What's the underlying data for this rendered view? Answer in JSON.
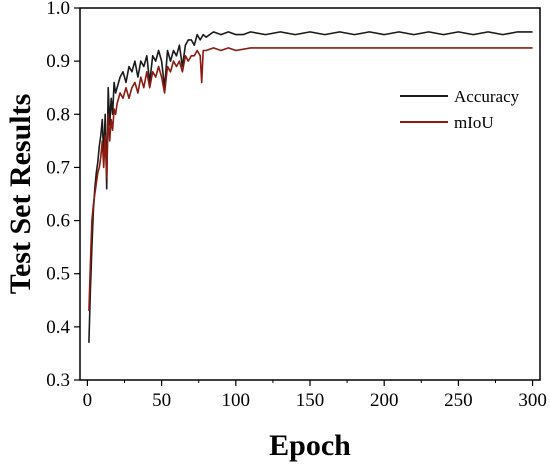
{
  "chart_data": {
    "type": "line",
    "title": "",
    "xlabel": "Epoch",
    "ylabel": "Test Set Results",
    "xlim": [
      -5,
      305
    ],
    "ylim": [
      0.3,
      1.0
    ],
    "xticks": [
      "0",
      "50",
      "100",
      "150",
      "200",
      "250",
      "300"
    ],
    "yticks": [
      "0.3",
      "0.4",
      "0.5",
      "0.6",
      "0.7",
      "0.8",
      "0.9",
      "1.0"
    ],
    "grid": false,
    "legend_position": "top-right",
    "series": [
      {
        "name": "Accuracy",
        "color": "#1a1a1a",
        "points": [
          [
            1,
            0.37
          ],
          [
            2,
            0.47
          ],
          [
            3,
            0.55
          ],
          [
            4,
            0.62
          ],
          [
            5,
            0.66
          ],
          [
            6,
            0.69
          ],
          [
            7,
            0.71
          ],
          [
            8,
            0.74
          ],
          [
            9,
            0.76
          ],
          [
            10,
            0.79
          ],
          [
            11,
            0.72
          ],
          [
            12,
            0.8
          ],
          [
            13,
            0.66
          ],
          [
            14,
            0.85
          ],
          [
            15,
            0.78
          ],
          [
            16,
            0.83
          ],
          [
            17,
            0.8
          ],
          [
            18,
            0.86
          ],
          [
            19,
            0.84
          ],
          [
            20,
            0.85
          ],
          [
            22,
            0.87
          ],
          [
            24,
            0.88
          ],
          [
            26,
            0.86
          ],
          [
            28,
            0.89
          ],
          [
            30,
            0.88
          ],
          [
            32,
            0.9
          ],
          [
            34,
            0.87
          ],
          [
            36,
            0.9
          ],
          [
            38,
            0.89
          ],
          [
            40,
            0.91
          ],
          [
            42,
            0.86
          ],
          [
            44,
            0.91
          ],
          [
            46,
            0.9
          ],
          [
            48,
            0.92
          ],
          [
            50,
            0.9
          ],
          [
            52,
            0.85
          ],
          [
            54,
            0.92
          ],
          [
            56,
            0.9
          ],
          [
            58,
            0.92
          ],
          [
            60,
            0.91
          ],
          [
            62,
            0.93
          ],
          [
            64,
            0.89
          ],
          [
            66,
            0.93
          ],
          [
            68,
            0.94
          ],
          [
            70,
            0.94
          ],
          [
            72,
            0.93
          ],
          [
            74,
            0.95
          ],
          [
            76,
            0.94
          ],
          [
            78,
            0.95
          ],
          [
            80,
            0.945
          ],
          [
            85,
            0.955
          ],
          [
            90,
            0.95
          ],
          [
            95,
            0.955
          ],
          [
            100,
            0.95
          ],
          [
            105,
            0.95
          ],
          [
            110,
            0.955
          ],
          [
            120,
            0.95
          ],
          [
            130,
            0.955
          ],
          [
            140,
            0.95
          ],
          [
            150,
            0.955
          ],
          [
            160,
            0.95
          ],
          [
            170,
            0.955
          ],
          [
            180,
            0.95
          ],
          [
            190,
            0.955
          ],
          [
            200,
            0.95
          ],
          [
            210,
            0.955
          ],
          [
            220,
            0.95
          ],
          [
            230,
            0.955
          ],
          [
            240,
            0.95
          ],
          [
            250,
            0.955
          ],
          [
            260,
            0.95
          ],
          [
            270,
            0.955
          ],
          [
            280,
            0.95
          ],
          [
            290,
            0.955
          ],
          [
            300,
            0.955
          ]
        ]
      },
      {
        "name": "mIoU",
        "color": "#8b1a10",
        "points": [
          [
            1,
            0.43
          ],
          [
            2,
            0.52
          ],
          [
            3,
            0.6
          ],
          [
            4,
            0.63
          ],
          [
            5,
            0.65
          ],
          [
            6,
            0.67
          ],
          [
            7,
            0.69
          ],
          [
            8,
            0.7
          ],
          [
            9,
            0.72
          ],
          [
            10,
            0.75
          ],
          [
            11,
            0.7
          ],
          [
            12,
            0.76
          ],
          [
            13,
            0.68
          ],
          [
            14,
            0.8
          ],
          [
            15,
            0.75
          ],
          [
            16,
            0.79
          ],
          [
            17,
            0.77
          ],
          [
            18,
            0.81
          ],
          [
            19,
            0.8
          ],
          [
            20,
            0.82
          ],
          [
            22,
            0.84
          ],
          [
            24,
            0.83
          ],
          [
            26,
            0.85
          ],
          [
            28,
            0.83
          ],
          [
            30,
            0.85
          ],
          [
            32,
            0.86
          ],
          [
            34,
            0.84
          ],
          [
            36,
            0.87
          ],
          [
            38,
            0.85
          ],
          [
            40,
            0.88
          ],
          [
            42,
            0.85
          ],
          [
            44,
            0.88
          ],
          [
            46,
            0.87
          ],
          [
            48,
            0.89
          ],
          [
            50,
            0.87
          ],
          [
            52,
            0.84
          ],
          [
            54,
            0.89
          ],
          [
            56,
            0.88
          ],
          [
            58,
            0.9
          ],
          [
            60,
            0.89
          ],
          [
            62,
            0.9
          ],
          [
            64,
            0.88
          ],
          [
            66,
            0.91
          ],
          [
            68,
            0.9
          ],
          [
            70,
            0.91
          ],
          [
            72,
            0.91
          ],
          [
            74,
            0.92
          ],
          [
            76,
            0.91
          ],
          [
            77,
            0.86
          ],
          [
            78,
            0.92
          ],
          [
            80,
            0.92
          ],
          [
            85,
            0.925
          ],
          [
            90,
            0.92
          ],
          [
            95,
            0.925
          ],
          [
            100,
            0.92
          ],
          [
            110,
            0.925
          ],
          [
            120,
            0.925
          ],
          [
            130,
            0.925
          ],
          [
            140,
            0.925
          ],
          [
            150,
            0.925
          ],
          [
            160,
            0.925
          ],
          [
            170,
            0.925
          ],
          [
            180,
            0.925
          ],
          [
            190,
            0.925
          ],
          [
            200,
            0.925
          ],
          [
            210,
            0.925
          ],
          [
            220,
            0.925
          ],
          [
            230,
            0.925
          ],
          [
            240,
            0.925
          ],
          [
            250,
            0.925
          ],
          [
            260,
            0.925
          ],
          [
            270,
            0.925
          ],
          [
            280,
            0.925
          ],
          [
            290,
            0.925
          ],
          [
            300,
            0.925
          ]
        ]
      }
    ]
  }
}
